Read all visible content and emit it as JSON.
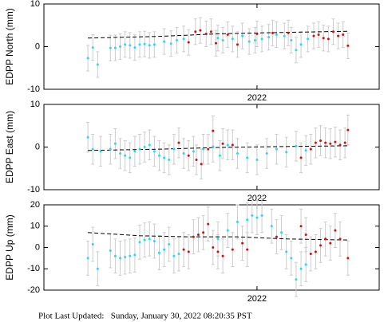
{
  "chart_data": [
    {
      "type": "scatter",
      "ylabel": "EDPP North (mm)",
      "xlim": [
        2021.782,
        2022.125
      ],
      "ylim": [
        -10,
        10
      ],
      "xticks": [
        2022
      ],
      "yticks": [
        -10,
        0,
        10
      ],
      "series": [
        {
          "color": "#22ddee",
          "error": 3,
          "x": [
            2021.827,
            2021.832,
            2021.837,
            2021.85,
            2021.855,
            2021.86,
            2021.865,
            2021.87,
            2021.875,
            2021.88,
            2021.885,
            2021.89,
            2021.895,
            2021.905,
            2021.912,
            2021.918,
            2021.925,
            2021.96,
            2021.965,
            2021.975,
            2021.985,
            2021.992,
            2021.998,
            2022.005,
            2022.012,
            2022.02,
            2022.028,
            2022.035,
            2022.04,
            2022.045,
            2022.052
          ],
          "values": [
            -2.7,
            -0.2,
            -4.2,
            -0.3,
            -0.3,
            0,
            0.5,
            0.3,
            -0.2,
            0.5,
            0.6,
            0.3,
            0.5,
            1.2,
            0.7,
            1.5,
            1.8,
            2,
            1.5,
            1.8,
            2.5,
            1.2,
            1.5,
            1.8,
            2.2,
            2.8,
            2.5,
            1.5,
            -0.8,
            0.5,
            1.8
          ]
        },
        {
          "color": "#cc1111",
          "error": 3,
          "x": [
            2021.93,
            2021.937,
            2021.942,
            2021.948,
            2021.953,
            2021.958,
            2021.97,
            2021.98,
            2022.0,
            2022.016,
            2022.032,
            2022.058,
            2022.063,
            2022.068,
            2022.073,
            2022.078,
            2022.083,
            2022.088,
            2022.093
          ],
          "values": [
            1,
            3.5,
            3.8,
            3,
            3.5,
            0.8,
            2.8,
            0.5,
            3,
            3.2,
            3.2,
            2.5,
            2.8,
            2,
            1.8,
            3.5,
            2.5,
            2.8,
            0.2
          ]
        }
      ],
      "model": {
        "color": "#000000",
        "x": [
          2021.827,
          2021.9,
          2021.96,
          2022.02,
          2022.093
        ],
        "values": [
          2,
          2.4,
          3,
          3.3,
          3.6
        ]
      }
    },
    {
      "type": "scatter",
      "ylabel": "EDPP East (mm)",
      "xlim": [
        2021.782,
        2022.125
      ],
      "ylim": [
        -10,
        10
      ],
      "xticks": [
        2022
      ],
      "yticks": [
        -10,
        0,
        10
      ],
      "series": [
        {
          "color": "#22ddee",
          "error": 3.5,
          "x": [
            2021.827,
            2021.832,
            2021.84,
            2021.85,
            2021.855,
            2021.86,
            2021.865,
            2021.87,
            2021.875,
            2021.88,
            2021.885,
            2021.89,
            2021.895,
            2021.9,
            2021.905,
            2021.91,
            2021.915,
            2021.925,
            2021.935,
            2021.945,
            2021.955,
            2021.962,
            2021.97,
            2021.98,
            2021.99,
            2022.0,
            2022.01,
            2022.02,
            2022.03,
            2022.04,
            2022.05
          ],
          "values": [
            2.3,
            -0.5,
            -1,
            -0.5,
            0.8,
            -1.5,
            -2,
            -2.5,
            -1,
            -0.5,
            0,
            0.5,
            -1,
            -2,
            -2.5,
            -3,
            -0.5,
            -1.5,
            -1,
            -0.5,
            0,
            -2,
            0.5,
            -1.5,
            -2.5,
            -3,
            -1.5,
            -0.5,
            -1.2,
            0.2,
            -0.8
          ]
        },
        {
          "color": "#cc1111",
          "error": 3.5,
          "x": [
            2021.92,
            2021.93,
            2021.938,
            2021.943,
            2021.95,
            2021.955,
            2021.965,
            2021.975,
            2022.045,
            2022.055,
            2022.06,
            2022.065,
            2022.07,
            2022.075,
            2022.08,
            2022.085,
            2022.09,
            2022.093
          ],
          "values": [
            1,
            -2,
            -3,
            -4,
            -0.5,
            3.8,
            0.8,
            0.5,
            -2.5,
            -0.5,
            1,
            1.5,
            1,
            0.8,
            1.2,
            0.5,
            1,
            4
          ]
        }
      ],
      "model": {
        "color": "#000000",
        "x": [
          2021.827,
          2021.9,
          2021.96,
          2022.02,
          2022.093
        ],
        "values": [
          -0.8,
          -0.5,
          -0.1,
          0.1,
          0.3
        ]
      }
    },
    {
      "type": "scatter",
      "ylabel": "EDPP Up (mm)",
      "xlim": [
        2021.782,
        2022.125
      ],
      "ylim": [
        -20,
        20
      ],
      "xticks": [
        2022
      ],
      "yticks": [
        -20,
        -10,
        0,
        10,
        20
      ],
      "series": [
        {
          "color": "#22ddee",
          "error": 8,
          "x": [
            2021.827,
            2021.832,
            2021.837,
            2021.85,
            2021.855,
            2021.86,
            2021.865,
            2021.87,
            2021.875,
            2021.88,
            2021.885,
            2021.89,
            2021.895,
            2021.9,
            2021.905,
            2021.91,
            2021.915,
            2021.92,
            2021.96,
            2021.97,
            2021.98,
            2021.99,
            2021.995,
            2022.0,
            2022.005,
            2022.015,
            2022.025,
            2022.03,
            2022.035,
            2022.04,
            2022.045,
            2022.05
          ],
          "values": [
            -5,
            1.5,
            -10,
            -1.5,
            -4,
            -5,
            -4.5,
            -4,
            -3.5,
            2.5,
            3.5,
            4,
            3,
            -2.5,
            -1,
            1.5,
            -4,
            -3,
            4,
            8,
            12,
            13,
            15,
            14,
            15,
            10,
            7,
            -2,
            -5,
            -15,
            -10,
            -8
          ]
        },
        {
          "color": "#cc1111",
          "error": 8,
          "x": [
            2021.925,
            2021.93,
            2021.935,
            2021.94,
            2021.945,
            2021.95,
            2021.955,
            2021.96,
            2021.965,
            2021.975,
            2021.985,
            2021.99,
            2022.02,
            2022.045,
            2022.05,
            2022.055,
            2022.06,
            2022.065,
            2022.07,
            2022.075,
            2022.08,
            2022.085,
            2022.093
          ],
          "values": [
            -1,
            -2,
            5,
            6,
            7,
            11,
            0,
            -2,
            -4,
            -1,
            2,
            -1,
            5,
            10,
            6,
            -3,
            -2,
            1,
            4,
            2,
            8,
            4,
            -5
          ]
        }
      ],
      "model": {
        "color": "#000000",
        "x": [
          2021.827,
          2021.88,
          2021.93,
          2021.98,
          2022.03,
          2022.093
        ],
        "values": [
          7,
          5.5,
          5,
          5,
          4,
          3.5
        ]
      }
    }
  ],
  "footer": "Plot Last Updated:   Sunday, January 30, 2022 08:20:35 PST"
}
